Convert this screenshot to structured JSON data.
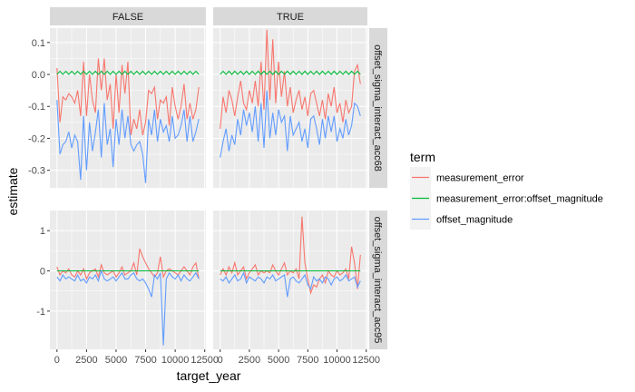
{
  "chart_data": {
    "type": "line",
    "xlabel": "target_year",
    "ylabel": "estimate",
    "legend": {
      "title": "term",
      "position": "right",
      "items": [
        "measurement_error",
        "measurement_error:offset_magnitude",
        "offset_magnitude"
      ]
    },
    "colors": {
      "measurement_error": "#F8766D",
      "measurement_error:offset_magnitude": "#00BA38",
      "offset_magnitude": "#619CFF",
      "panel_bg": "#EBEBEB",
      "strip_bg": "#D9D9D9",
      "grid": "#FFFFFF"
    },
    "grid": true,
    "column_facets": [
      "FALSE",
      "TRUE"
    ],
    "row_facets": [
      "offset_sigma_interact_acc68",
      "offset_sigma_interact_acc95"
    ],
    "xlim": [
      -600,
      12600
    ],
    "x_ticks": [
      0,
      2500,
      5000,
      7500,
      10000,
      12500
    ],
    "x_tick_labels": [
      "0",
      "2500",
      "5000",
      "7500",
      "10000",
      "12500"
    ],
    "rows": [
      {
        "ylim": [
          -0.355,
          0.145
        ],
        "y_ticks": [
          0.1,
          0.0,
          -0.1,
          -0.2,
          -0.3
        ],
        "y_tick_labels": [
          "0.1",
          "0.0",
          "-0.1",
          "-0.2",
          "-0.3"
        ]
      },
      {
        "ylim": [
          -1.95,
          1.5
        ],
        "y_ticks": [
          1,
          0,
          -1
        ],
        "y_tick_labels": [
          "1",
          "0",
          "-1"
        ]
      }
    ],
    "x": [
      0,
      250,
      500,
      750,
      1000,
      1250,
      1500,
      1750,
      2000,
      2250,
      2500,
      2750,
      3000,
      3250,
      3500,
      3750,
      4000,
      4250,
      4500,
      4750,
      5000,
      5250,
      5500,
      5750,
      6000,
      6250,
      6500,
      6750,
      7000,
      7250,
      7500,
      7750,
      8000,
      8250,
      8500,
      8750,
      9000,
      9250,
      9500,
      9750,
      10000,
      10250,
      10500,
      10750,
      11000,
      11250,
      11500,
      11750,
      12000
    ],
    "panels": [
      {
        "row": 0,
        "col": 0,
        "series": [
          {
            "name": "measurement_error",
            "values": [
              0.02,
              -0.15,
              -0.07,
              -0.08,
              -0.06,
              -0.07,
              -0.09,
              -0.05,
              -0.13,
              0.04,
              -0.13,
              0.0,
              -0.08,
              -0.12,
              0.05,
              -0.05,
              0.05,
              -0.08,
              -0.03,
              -0.17,
              0.0,
              -0.12,
              0.03,
              -0.06,
              0.04,
              -0.19,
              -0.14,
              -0.17,
              -0.11,
              -0.19,
              -0.15,
              -0.05,
              -0.06,
              -0.04,
              -0.14,
              -0.08,
              -0.09,
              -0.07,
              -0.16,
              -0.04,
              -0.1,
              -0.14,
              -0.1,
              -0.03,
              -0.14,
              -0.09,
              -0.14,
              -0.11,
              -0.04
            ]
          },
          {
            "name": "measurement_error:offset_magnitude",
            "values": [
              0.0,
              0.01,
              0.0,
              0.01,
              0.0,
              0.01,
              0.0,
              0.01,
              0.0,
              0.01,
              0.0,
              0.01,
              0.0,
              0.01,
              0.0,
              0.01,
              0.0,
              0.01,
              0.0,
              0.01,
              0.0,
              0.01,
              0.0,
              0.01,
              0.0,
              0.01,
              0.0,
              0.01,
              0.0,
              0.01,
              0.0,
              0.01,
              0.0,
              0.01,
              0.0,
              0.01,
              0.0,
              0.01,
              0.0,
              0.01,
              0.0,
              0.01,
              0.0,
              0.01,
              0.0,
              0.01,
              0.0,
              0.01,
              0.0
            ]
          },
          {
            "name": "offset_magnitude",
            "values": [
              -0.08,
              -0.25,
              -0.22,
              -0.21,
              -0.18,
              -0.23,
              -0.19,
              -0.21,
              -0.33,
              -0.13,
              -0.3,
              -0.15,
              -0.24,
              -0.18,
              -0.11,
              -0.26,
              -0.09,
              -0.22,
              -0.17,
              -0.29,
              -0.14,
              -0.22,
              -0.11,
              -0.2,
              -0.13,
              -0.22,
              -0.24,
              -0.22,
              -0.21,
              -0.25,
              -0.34,
              -0.14,
              -0.19,
              -0.11,
              -0.21,
              -0.14,
              -0.18,
              -0.16,
              -0.21,
              -0.13,
              -0.2,
              -0.19,
              -0.16,
              -0.11,
              -0.21,
              -0.13,
              -0.21,
              -0.18,
              -0.14
            ]
          }
        ]
      },
      {
        "row": 0,
        "col": 1,
        "series": [
          {
            "name": "measurement_error",
            "values": [
              -0.17,
              -0.07,
              -0.12,
              -0.05,
              -0.08,
              -0.13,
              -0.07,
              -0.02,
              -0.09,
              -0.11,
              -0.05,
              -0.09,
              -0.02,
              -0.1,
              0.04,
              -0.11,
              0.14,
              -0.08,
              0.11,
              -0.09,
              0.04,
              -0.07,
              0.01,
              -0.1,
              -0.04,
              -0.12,
              -0.08,
              -0.05,
              -0.11,
              -0.07,
              -0.13,
              -0.06,
              -0.05,
              -0.09,
              -0.13,
              -0.08,
              -0.14,
              -0.06,
              -0.1,
              -0.04,
              -0.12,
              -0.09,
              -0.15,
              -0.08,
              -0.12,
              -0.1,
              0.01,
              0.03,
              -0.03
            ]
          },
          {
            "name": "measurement_error:offset_magnitude",
            "values": [
              0.0,
              0.01,
              0.0,
              0.01,
              0.0,
              0.01,
              0.0,
              0.01,
              0.0,
              0.01,
              0.0,
              0.01,
              0.0,
              0.01,
              0.0,
              0.01,
              0.0,
              0.01,
              0.0,
              0.01,
              0.0,
              0.01,
              0.0,
              0.01,
              0.0,
              0.01,
              0.0,
              0.01,
              0.0,
              0.01,
              0.0,
              0.01,
              0.0,
              0.01,
              0.0,
              0.01,
              0.0,
              0.01,
              0.0,
              0.01,
              0.0,
              0.01,
              0.0,
              0.01,
              0.0,
              0.01,
              0.0,
              0.01,
              0.0
            ]
          },
          {
            "name": "offset_magnitude",
            "values": [
              -0.26,
              -0.21,
              -0.17,
              -0.24,
              -0.19,
              -0.22,
              -0.14,
              -0.19,
              -0.11,
              -0.16,
              -0.12,
              -0.18,
              -0.1,
              -0.21,
              -0.09,
              -0.23,
              -0.05,
              -0.2,
              -0.12,
              -0.19,
              -0.11,
              -0.15,
              -0.13,
              -0.24,
              -0.13,
              -0.19,
              -0.17,
              -0.15,
              -0.21,
              -0.17,
              -0.23,
              -0.14,
              -0.13,
              -0.17,
              -0.22,
              -0.14,
              -0.2,
              -0.13,
              -0.18,
              -0.13,
              -0.21,
              -0.17,
              -0.2,
              -0.14,
              -0.19,
              -0.16,
              -0.09,
              -0.1,
              -0.13
            ]
          }
        ]
      },
      {
        "row": 1,
        "col": 0,
        "series": [
          {
            "name": "measurement_error",
            "values": [
              0.1,
              -0.1,
              0.0,
              -0.05,
              0.05,
              -0.1,
              -0.15,
              0.0,
              -0.1,
              0.05,
              -0.2,
              -0.05,
              0.0,
              0.05,
              -0.15,
              0.15,
              -0.05,
              -0.1,
              -0.05,
              0.0,
              -0.15,
              -0.05,
              0.1,
              -0.1,
              -0.05,
              0.0,
              0.2,
              -0.1,
              0.55,
              0.35,
              0.2,
              0.05,
              -0.05,
              -0.15,
              -0.05,
              0.35,
              -0.15,
              0.0,
              0.05,
              0.0,
              -0.05,
              -0.1,
              0.0,
              0.1,
              0.0,
              -0.1,
              0.1,
              0.2,
              -0.2
            ]
          },
          {
            "name": "measurement_error:offset_magnitude",
            "values": [
              0.0,
              0.0,
              0.0,
              0.0,
              0.0,
              0.0,
              0.0,
              0.0,
              0.0,
              0.0,
              0.0,
              0.0,
              0.0,
              0.0,
              0.0,
              0.0,
              0.0,
              0.0,
              0.0,
              0.0,
              0.0,
              0.0,
              0.0,
              0.0,
              0.0,
              0.0,
              0.0,
              0.0,
              0.0,
              0.0,
              0.0,
              0.0,
              0.0,
              0.0,
              0.0,
              0.0,
              0.0,
              0.0,
              0.0,
              0.0,
              0.0,
              0.0,
              0.0,
              0.0,
              0.0,
              0.0,
              0.0,
              0.0,
              0.0
            ]
          },
          {
            "name": "offset_magnitude",
            "values": [
              -0.15,
              -0.25,
              -0.1,
              -0.2,
              -0.15,
              -0.2,
              -0.25,
              -0.1,
              -0.25,
              -0.2,
              -0.3,
              -0.15,
              -0.2,
              -0.1,
              -0.25,
              0.0,
              -0.2,
              -0.25,
              -0.2,
              -0.15,
              -0.25,
              -0.15,
              -0.05,
              -0.2,
              -0.2,
              -0.1,
              -0.05,
              -0.2,
              -0.25,
              -0.2,
              -0.3,
              -0.45,
              -0.65,
              -0.1,
              -0.2,
              -0.05,
              -1.85,
              -0.2,
              -0.05,
              -0.15,
              -0.2,
              -0.1,
              -0.25,
              -0.1,
              -0.2,
              -0.25,
              -0.15,
              -0.05,
              -0.2
            ]
          }
        ]
      },
      {
        "row": 1,
        "col": 1,
        "series": [
          {
            "name": "measurement_error",
            "values": [
              -0.1,
              0.05,
              -0.1,
              0.1,
              -0.05,
              0.2,
              -0.1,
              0.0,
              0.1,
              -0.2,
              -0.05,
              0.05,
              0.15,
              -0.1,
              0.0,
              -0.05,
              0.0,
              -0.05,
              0.15,
              0.0,
              -0.1,
              0.05,
              0.2,
              -0.1,
              0.0,
              -0.05,
              0.05,
              -0.2,
              1.35,
              0.2,
              -0.2,
              -0.55,
              -0.35,
              -0.4,
              -0.2,
              -0.1,
              -0.3,
              0.0,
              -0.1,
              -0.15,
              0.0,
              -0.1,
              -0.05,
              0.05,
              -0.2,
              0.6,
              0.2,
              -0.45,
              0.4
            ]
          },
          {
            "name": "measurement_error:offset_magnitude",
            "values": [
              0.0,
              0.0,
              0.0,
              0.0,
              0.0,
              0.0,
              0.0,
              0.0,
              0.0,
              0.0,
              0.0,
              0.0,
              0.0,
              0.0,
              0.0,
              0.0,
              0.0,
              0.0,
              0.0,
              0.0,
              0.0,
              0.0,
              0.0,
              0.0,
              0.0,
              0.0,
              0.0,
              0.0,
              0.0,
              0.0,
              0.0,
              0.0,
              0.0,
              0.0,
              0.0,
              0.0,
              0.0,
              0.0,
              0.0,
              0.0,
              0.0,
              0.0,
              0.0,
              0.0,
              0.0,
              0.0,
              0.0,
              0.0,
              0.0
            ]
          },
          {
            "name": "offset_magnitude",
            "values": [
              -0.2,
              -0.25,
              -0.15,
              -0.3,
              -0.2,
              -0.1,
              -0.25,
              -0.2,
              -0.05,
              -0.3,
              -0.15,
              -0.2,
              -0.25,
              -0.15,
              -0.2,
              -0.3,
              -0.15,
              -0.2,
              -0.1,
              -0.25,
              -0.2,
              -0.15,
              -0.1,
              -0.65,
              -0.2,
              -0.15,
              -0.25,
              -0.3,
              -0.2,
              -0.1,
              -0.35,
              -0.45,
              -0.15,
              -0.25,
              -0.2,
              -0.3,
              -0.15,
              -0.2,
              -0.35,
              -0.2,
              -0.15,
              -0.25,
              -0.2,
              -0.1,
              -0.25,
              -0.2,
              -0.15,
              -0.4,
              -0.25
            ]
          }
        ]
      }
    ]
  }
}
